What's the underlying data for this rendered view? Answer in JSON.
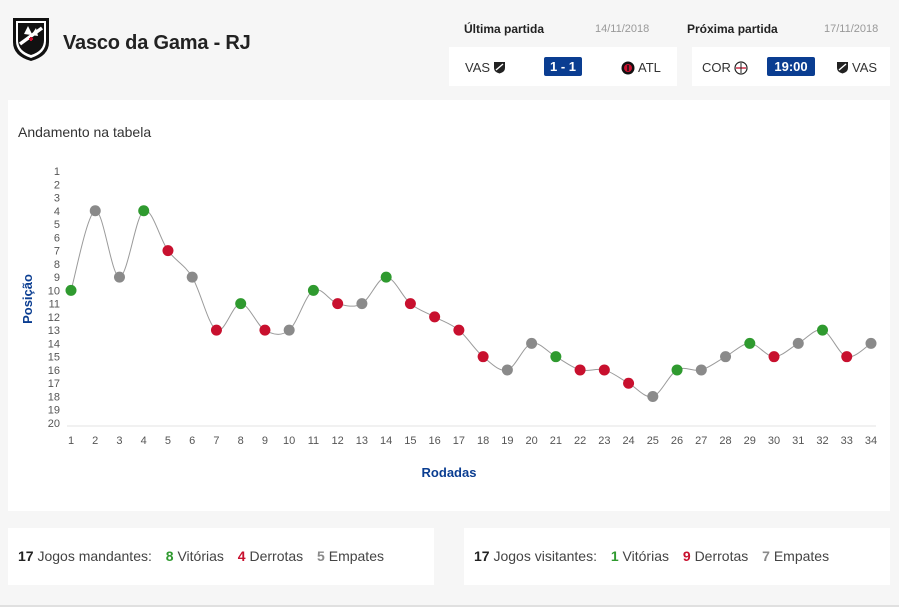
{
  "team": {
    "name": "Vasco da Gama - RJ",
    "crest_icon": "vasco-crest-icon"
  },
  "last_match": {
    "label": "Última partida",
    "date": "14/11/2018",
    "home": "VAS",
    "away": "ATL",
    "score": "1 - 1",
    "home_icon": "vasco-crest-icon",
    "away_icon": "atletico-crest-icon"
  },
  "next_match": {
    "label": "Próxima partida",
    "date": "17/11/2018",
    "home": "COR",
    "away": "VAS",
    "time": "19:00",
    "home_icon": "corinthians-crest-icon",
    "away_icon": "vasco-crest-icon"
  },
  "chart_title": "Andamento na tabela",
  "chart_data": {
    "type": "line",
    "title": "Andamento na tabela",
    "xlabel": "Rodadas",
    "ylabel": "Posição",
    "x": [
      1,
      2,
      3,
      4,
      5,
      6,
      7,
      8,
      9,
      10,
      11,
      12,
      13,
      14,
      15,
      16,
      17,
      18,
      19,
      20,
      21,
      22,
      23,
      24,
      25,
      26,
      27,
      28,
      29,
      30,
      31,
      32,
      33,
      34
    ],
    "y": [
      10,
      4,
      9,
      4,
      7,
      9,
      13,
      11,
      13,
      13,
      10,
      11,
      11,
      9,
      11,
      12,
      13,
      15,
      16,
      14,
      15,
      16,
      16,
      17,
      18,
      16,
      16,
      15,
      14,
      15,
      14,
      13,
      15,
      14
    ],
    "results": [
      "V",
      "E",
      "E",
      "V",
      "D",
      "E",
      "D",
      "V",
      "D",
      "E",
      "V",
      "D",
      "E",
      "V",
      "D",
      "D",
      "D",
      "D",
      "E",
      "E",
      "V",
      "D",
      "D",
      "D",
      "E",
      "V",
      "E",
      "E",
      "V",
      "D",
      "E",
      "V",
      "D",
      "E"
    ],
    "ylim": [
      1,
      20
    ],
    "y_inverted": true,
    "y_ticks": [
      1,
      2,
      3,
      4,
      5,
      6,
      7,
      8,
      9,
      10,
      11,
      12,
      13,
      14,
      15,
      16,
      17,
      18,
      19,
      20
    ],
    "x_ticks": [
      1,
      2,
      3,
      4,
      5,
      6,
      7,
      8,
      9,
      10,
      11,
      12,
      13,
      14,
      15,
      16,
      17,
      18,
      19,
      20,
      21,
      22,
      23,
      24,
      25,
      26,
      27,
      28,
      29,
      30,
      31,
      32,
      33,
      34
    ],
    "colors": {
      "V": "#2f9a2f",
      "D": "#c8102e",
      "E": "#8a8a8a",
      "line": "#9a9a9a",
      "axis_label": "#0a3d91"
    }
  },
  "home_stats": {
    "total": "17",
    "total_label": "Jogos mandantes:",
    "wins": "8",
    "wins_label": "Vitórias",
    "losses": "4",
    "losses_label": "Derrotas",
    "draws": "5",
    "draws_label": "Empates"
  },
  "away_stats": {
    "total": "17",
    "total_label": "Jogos visitantes:",
    "wins": "1",
    "wins_label": "Vitórias",
    "losses": "9",
    "losses_label": "Derrotas",
    "draws": "7",
    "draws_label": "Empates"
  }
}
